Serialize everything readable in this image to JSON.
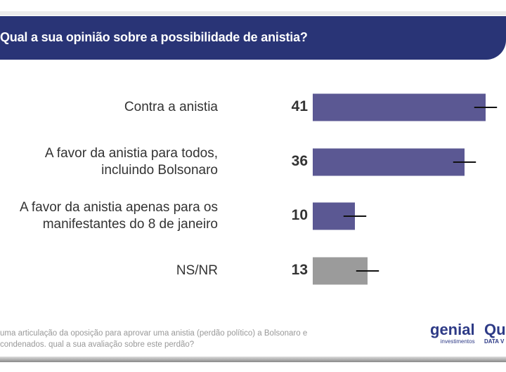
{
  "title": "Qual a sua opinião sobre a possibilidade de anistia?",
  "chart_data": {
    "type": "bar",
    "orientation": "horizontal",
    "title": "Qual a sua opinião sobre a possibilidade de anistia?",
    "categories": [
      "Contra a anistia",
      "A favor da anistia para todos, incluindo Bolsonaro",
      "A favor da anistia apenas para os manifestantes do 8 de janeiro",
      "NS/NR"
    ],
    "category_lines": [
      [
        "Contra a anistia"
      ],
      [
        "A favor da anistia para todos,",
        "incluindo Bolsonaro"
      ],
      [
        "A favor da anistia apenas para os",
        "manifestantes do 8 de janeiro"
      ],
      [
        "NS/NR"
      ]
    ],
    "values": [
      41,
      36,
      10,
      13
    ],
    "value_labels": [
      "41",
      "36",
      "10",
      "13"
    ],
    "error_margin": 2.7,
    "colors": [
      "#5b5893",
      "#5b5893",
      "#5b5893",
      "#9b9b9b"
    ]
  },
  "footnote": [
    "uma articulação da oposição para aprovar uma anistia (perdão político) a Bolsonaro e",
    "condenados. qual a sua avaliação sobre este perdão?"
  ],
  "logo": {
    "brand": "genial",
    "sub": "investimentos",
    "partner": "Qu",
    "partner_sub": "DATA V"
  },
  "watermark": {
    "brand": "genial",
    "sub": "investimentos"
  }
}
